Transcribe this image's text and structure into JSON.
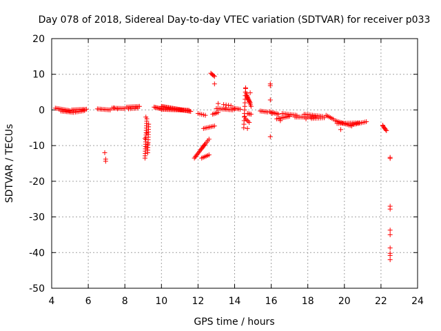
{
  "chart_data": {
    "type": "scatter",
    "title": "Day 078 of 2018, Sidereal Day-to-day VTEC variation (SDTVAR) for receiver p033",
    "xlabel": "GPS time / hours",
    "ylabel": "SDTVAR / TECUs",
    "xlim": [
      4,
      24
    ],
    "ylim": [
      -50,
      20
    ],
    "x_ticks": [
      "4",
      "6",
      "8",
      "10",
      "12",
      "14",
      "16",
      "18",
      "20",
      "22",
      "24"
    ],
    "y_ticks": [
      "20",
      "10",
      "0",
      "-10",
      "-20",
      "-30",
      "-40",
      "-50"
    ],
    "marker": "+",
    "color": "#ff0000",
    "grid": true,
    "series": [
      {
        "name": "SDTVAR",
        "segments": [
          {
            "x0": 4.2,
            "y0": 0.5,
            "x1": 5.0,
            "y1": -0.2,
            "n": 12
          },
          {
            "x0": 4.5,
            "y0": -0.3,
            "x1": 5.2,
            "y1": -0.7,
            "n": 10
          },
          {
            "x0": 5.1,
            "y0": 0.0,
            "x1": 5.9,
            "y1": 0.2,
            "n": 12
          },
          {
            "x0": 5.3,
            "y0": -0.6,
            "x1": 5.8,
            "y1": -0.2,
            "n": 7
          },
          {
            "x0": 6.5,
            "y0": 0.3,
            "x1": 7.2,
            "y1": 0.0,
            "n": 10
          },
          {
            "x0": 7.3,
            "y0": 0.5,
            "x1": 8.0,
            "y1": 0.4,
            "n": 10
          },
          {
            "x0": 8.1,
            "y0": 0.8,
            "x1": 8.8,
            "y1": 1.0,
            "n": 10
          },
          {
            "x0": 8.2,
            "y0": 0.3,
            "x1": 8.7,
            "y1": 0.5,
            "n": 6
          },
          {
            "x0": 9.1,
            "y0": -13.5,
            "x1": 9.2,
            "y1": -2.5,
            "n": 18
          },
          {
            "x0": 9.25,
            "y0": -12.0,
            "x1": 9.3,
            "y1": -4.0,
            "n": 12
          },
          {
            "x0": 9.6,
            "y0": 0.8,
            "x1": 10.0,
            "y1": 0.3,
            "n": 8
          },
          {
            "x0": 10.0,
            "y0": 1.0,
            "x1": 11.6,
            "y1": -0.4,
            "n": 30
          },
          {
            "x0": 10.0,
            "y0": 0.2,
            "x1": 11.5,
            "y1": -0.1,
            "n": 26
          },
          {
            "x0": 11.8,
            "y0": -13.5,
            "x1": 12.4,
            "y1": -9.5,
            "n": 14
          },
          {
            "x0": 12.2,
            "y0": -13.5,
            "x1": 12.6,
            "y1": -12.6,
            "n": 6
          },
          {
            "x0": 12.2,
            "y0": -10.8,
            "x1": 12.6,
            "y1": -8.2,
            "n": 7
          },
          {
            "x0": 12.0,
            "y0": -1.0,
            "x1": 12.4,
            "y1": -1.5,
            "n": 5
          },
          {
            "x0": 12.3,
            "y0": -5.2,
            "x1": 12.9,
            "y1": -4.5,
            "n": 8
          },
          {
            "x0": 12.7,
            "y0": 10.3,
            "x1": 12.9,
            "y1": 9.4,
            "n": 5
          },
          {
            "x0": 12.8,
            "y0": -1.2,
            "x1": 13.1,
            "y1": -0.7,
            "n": 5
          },
          {
            "x0": 13.0,
            "y0": 0.4,
            "x1": 13.9,
            "y1": 0.0,
            "n": 12
          },
          {
            "x0": 13.4,
            "y0": 1.5,
            "x1": 13.8,
            "y1": 1.2,
            "n": 4
          },
          {
            "x0": 13.9,
            "y0": 0.5,
            "x1": 14.3,
            "y1": 0.2,
            "n": 6
          },
          {
            "x0": 14.5,
            "y0": -5.0,
            "x1": 14.6,
            "y1": 6.0,
            "n": 12
          },
          {
            "x0": 14.6,
            "y0": 5.0,
            "x1": 14.9,
            "y1": 1.0,
            "n": 10
          },
          {
            "x0": 14.65,
            "y0": 4.0,
            "x1": 14.85,
            "y1": 2.0,
            "n": 8
          },
          {
            "x0": 14.6,
            "y0": -2.5,
            "x1": 14.8,
            "y1": -3.5,
            "n": 4
          },
          {
            "x0": 14.7,
            "y0": -1.0,
            "x1": 14.9,
            "y1": -1.2,
            "n": 4
          },
          {
            "x0": 15.4,
            "y0": -0.3,
            "x1": 15.8,
            "y1": -0.6,
            "n": 6
          },
          {
            "x0": 15.9,
            "y0": -0.5,
            "x1": 16.4,
            "y1": -1.2,
            "n": 8
          },
          {
            "x0": 16.3,
            "y0": -2.5,
            "x1": 17.0,
            "y1": -1.8,
            "n": 10
          },
          {
            "x0": 16.6,
            "y0": -1.0,
            "x1": 17.4,
            "y1": -1.5,
            "n": 10
          },
          {
            "x0": 17.3,
            "y0": -2.0,
            "x1": 18.4,
            "y1": -2.0,
            "n": 14
          },
          {
            "x0": 17.8,
            "y0": -1.2,
            "x1": 18.8,
            "y1": -1.8,
            "n": 12
          },
          {
            "x0": 18.2,
            "y0": -2.4,
            "x1": 18.9,
            "y1": -2.2,
            "n": 8
          },
          {
            "x0": 19.0,
            "y0": -1.5,
            "x1": 19.4,
            "y1": -2.6,
            "n": 6
          },
          {
            "x0": 19.5,
            "y0": -3.0,
            "x1": 20.4,
            "y1": -4.5,
            "n": 12
          },
          {
            "x0": 19.6,
            "y0": -3.8,
            "x1": 20.8,
            "y1": -3.6,
            "n": 14
          },
          {
            "x0": 20.4,
            "y0": -4.2,
            "x1": 21.2,
            "y1": -3.3,
            "n": 10
          },
          {
            "x0": 22.1,
            "y0": -4.5,
            "x1": 22.3,
            "y1": -5.8,
            "n": 6
          }
        ],
        "points": [
          [
            6.9,
            -12.0
          ],
          [
            6.95,
            -13.8
          ],
          [
            6.95,
            -14.4
          ],
          [
            7.4,
            0.6
          ],
          [
            7.6,
            0.3
          ],
          [
            9.15,
            -2.0
          ],
          [
            9.2,
            -6.5
          ],
          [
            9.1,
            -8.0
          ],
          [
            9.25,
            -9.5
          ],
          [
            9.2,
            -10.5
          ],
          [
            12.9,
            7.3
          ],
          [
            13.1,
            1.8
          ],
          [
            13.5,
            0.5
          ],
          [
            14.0,
            0.3
          ],
          [
            14.6,
            6.2
          ],
          [
            14.85,
            4.8
          ],
          [
            14.55,
            -1.8
          ],
          [
            14.7,
            -5.2
          ],
          [
            15.95,
            7.3
          ],
          [
            15.95,
            6.8
          ],
          [
            15.95,
            2.8
          ],
          [
            15.95,
            -7.5
          ],
          [
            16.05,
            -1.0
          ],
          [
            16.5,
            -3.0
          ],
          [
            17.9,
            -2.5
          ],
          [
            19.8,
            -5.5
          ],
          [
            22.1,
            -4.3
          ],
          [
            22.5,
            -13.3
          ],
          [
            22.5,
            -13.6
          ],
          [
            22.5,
            -27.0
          ],
          [
            22.5,
            -27.8
          ],
          [
            22.5,
            -33.7
          ],
          [
            22.5,
            -35.0
          ],
          [
            22.5,
            -38.7
          ],
          [
            22.5,
            -40.2
          ],
          [
            22.5,
            -40.8
          ],
          [
            22.5,
            -42.0
          ]
        ]
      }
    ]
  }
}
